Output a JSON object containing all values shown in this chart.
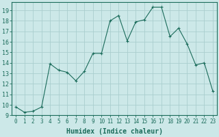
{
  "x": [
    0,
    1,
    2,
    3,
    4,
    5,
    6,
    7,
    8,
    9,
    10,
    11,
    12,
    13,
    14,
    15,
    16,
    17,
    18,
    19,
    20,
    21,
    22,
    23
  ],
  "y": [
    9.8,
    9.3,
    9.4,
    9.8,
    13.9,
    13.3,
    13.1,
    12.3,
    13.2,
    14.9,
    14.9,
    18.0,
    18.5,
    16.1,
    17.9,
    18.1,
    19.3,
    19.3,
    16.5,
    17.3,
    15.8,
    13.8,
    14.0,
    11.3
  ],
  "xlim": [
    -0.5,
    23.5
  ],
  "ylim": [
    9,
    19.8
  ],
  "yticks": [
    9,
    10,
    11,
    12,
    13,
    14,
    15,
    16,
    17,
    18,
    19
  ],
  "xticks": [
    0,
    1,
    2,
    3,
    4,
    5,
    6,
    7,
    8,
    9,
    10,
    11,
    12,
    13,
    14,
    15,
    16,
    17,
    18,
    19,
    20,
    21,
    22,
    23
  ],
  "xlabel": "Humidex (Indice chaleur)",
  "line_color": "#1a6b5a",
  "marker": "+",
  "marker_size": 3,
  "background_color": "#cce8e8",
  "grid_color": "#aacece",
  "tick_label_color": "#1a6b5a",
  "axis_color": "#1a6b5a",
  "xlabel_fontsize": 7,
  "ytick_fontsize": 6,
  "xtick_fontsize": 5.5
}
